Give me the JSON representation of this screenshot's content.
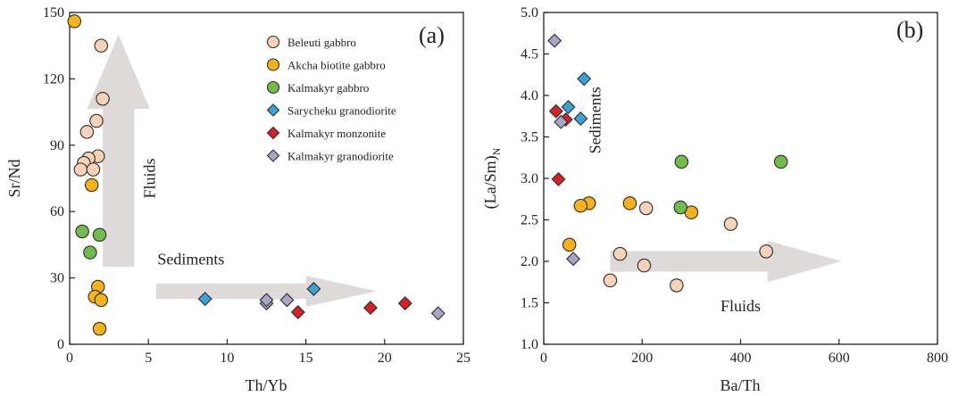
{
  "legend": [
    {
      "name": "Beleuti gabbro",
      "color": "#f6d2b8",
      "marker": "circle"
    },
    {
      "name": "Akcha biotite gabbro",
      "color": "#f3b11c",
      "marker": "circle"
    },
    {
      "name": "Kalmakyr gabbro",
      "color": "#73bb4b",
      "marker": "circle"
    },
    {
      "name": "Sarycheku granodiorite",
      "color": "#3aa3d6",
      "marker": "diamond"
    },
    {
      "name": "Kalmakyr monzonite",
      "color": "#d82027",
      "marker": "diamond"
    },
    {
      "name": "Kalmakyr granodiorite",
      "color": "#aaa4c6",
      "marker": "diamond"
    }
  ],
  "chart_data": [
    {
      "type": "scatter",
      "panel_label": "(a)",
      "xlabel": "Th/Yb",
      "ylabel": "Sr/Nd",
      "xlim": [
        0,
        25
      ],
      "ylim": [
        0,
        150
      ],
      "xticks": [
        0,
        5,
        10,
        15,
        20,
        25
      ],
      "yticks": [
        0,
        30,
        60,
        90,
        120,
        150
      ],
      "grid": false,
      "legend_position": "top-right",
      "annotations": [
        {
          "text": "Fluids",
          "x": 5.4,
          "y": 75,
          "rotate": -90
        },
        {
          "text": "Sediments",
          "x": 7.7,
          "y": 36,
          "rotate": 0
        }
      ],
      "arrows": [
        {
          "from": [
            3.1,
            35
          ],
          "to": [
            3.1,
            140
          ],
          "head_width": 4.0
        },
        {
          "from": [
            5.5,
            24
          ],
          "to": [
            19.5,
            24
          ],
          "head_width": 14
        }
      ],
      "series": [
        {
          "name": "Beleuti gabbro",
          "points": [
            [
              2.0,
              135
            ],
            [
              2.1,
              111
            ],
            [
              1.7,
              101
            ],
            [
              1.1,
              96
            ],
            [
              1.8,
              85
            ],
            [
              1.2,
              84
            ],
            [
              0.9,
              82
            ],
            [
              0.7,
              79
            ],
            [
              1.5,
              79
            ]
          ]
        },
        {
          "name": "Akcha biotite gabbro",
          "points": [
            [
              0.3,
              146
            ],
            [
              1.4,
              72
            ],
            [
              1.8,
              26
            ],
            [
              1.6,
              21.5
            ],
            [
              2.0,
              20
            ],
            [
              1.9,
              7
            ]
          ]
        },
        {
          "name": "Kalmakyr gabbro",
          "points": [
            [
              0.8,
              51
            ],
            [
              1.9,
              49.5
            ],
            [
              1.3,
              41.5
            ]
          ]
        },
        {
          "name": "Sarycheku granodiorite",
          "points": [
            [
              8.6,
              20.5
            ],
            [
              15.5,
              25
            ]
          ]
        },
        {
          "name": "Kalmakyr monzonite",
          "points": [
            [
              14.5,
              14.5
            ],
            [
              19.1,
              16.5
            ],
            [
              21.3,
              18.5
            ]
          ]
        },
        {
          "name": "Kalmakyr granodiorite",
          "points": [
            [
              12.5,
              18.5
            ],
            [
              12.5,
              20
            ],
            [
              13.8,
              20
            ],
            [
              23.4,
              14
            ]
          ]
        }
      ]
    },
    {
      "type": "scatter",
      "panel_label": "(b)",
      "xlabel": "Ba/Th",
      "ylabel": "(La/Sm)",
      "ylabel_subscript": "N",
      "xlim": [
        0,
        800
      ],
      "ylim": [
        1.0,
        5.0
      ],
      "xticks": [
        0,
        200,
        400,
        600,
        800
      ],
      "yticks": [
        1.0,
        1.5,
        2.0,
        2.5,
        3.0,
        3.5,
        4.0,
        4.5,
        5.0
      ],
      "grid": false,
      "annotations": [
        {
          "text": "Sediments",
          "x": 115,
          "y": 3.7,
          "rotate": -90
        },
        {
          "text": "Fluids",
          "x": 400,
          "y": 1.4,
          "rotate": 0
        }
      ],
      "arrows": [
        {
          "from": [
            77,
            1.85
          ],
          "to": [
            77,
            4.6
          ],
          "head_width": 0.8
        },
        {
          "from": [
            135,
            2.0
          ],
          "to": [
            605,
            2.0
          ],
          "head_width": 0.5
        }
      ],
      "series": [
        {
          "name": "Beleuti gabbro",
          "points": [
            [
              208,
              2.64
            ],
            [
              380,
              2.45
            ],
            [
              155,
              2.09
            ],
            [
              452,
              2.12
            ],
            [
              204,
              1.95
            ],
            [
              135,
              1.77
            ],
            [
              270,
              1.71
            ]
          ]
        },
        {
          "name": "Akcha biotite gabbro",
          "points": [
            [
              175,
              2.7
            ],
            [
              300,
              2.59
            ],
            [
              92,
              2.7
            ],
            [
              75,
              2.67
            ],
            [
              52,
              2.2
            ]
          ]
        },
        {
          "name": "Kalmakyr gabbro",
          "points": [
            [
              280,
              3.2
            ],
            [
              482,
              3.2
            ],
            [
              278,
              2.65
            ]
          ]
        },
        {
          "name": "Sarycheku granodiorite",
          "points": [
            [
              82,
              4.2
            ],
            [
              50,
              3.86
            ],
            [
              75,
              3.72
            ]
          ]
        },
        {
          "name": "Kalmakyr monzonite",
          "points": [
            [
              25,
              3.81
            ],
            [
              45,
              3.71
            ],
            [
              30,
              2.99
            ]
          ]
        },
        {
          "name": "Kalmakyr granodiorite",
          "points": [
            [
              22,
              4.66
            ],
            [
              35,
              3.68
            ],
            [
              60,
              2.03
            ]
          ]
        }
      ]
    }
  ]
}
